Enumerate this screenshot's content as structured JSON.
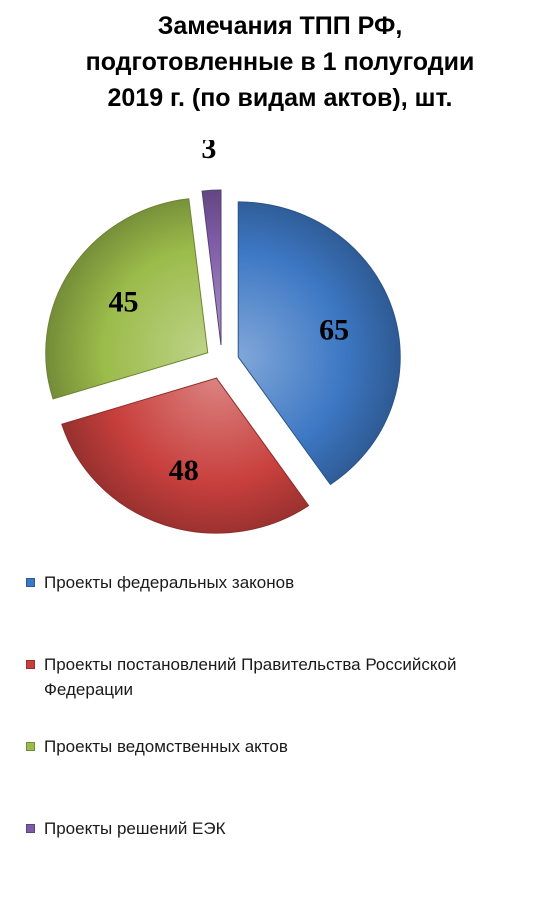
{
  "chart_data": {
    "type": "pie",
    "title": [
      "Замечания ТПП РФ,",
      "подготовленные в 1 полугодии",
      "2019 г. (по видам актов), шт."
    ],
    "series": [
      {
        "name": "Проекты федеральных законов",
        "value": 65,
        "color": "#3d78c4"
      },
      {
        "name": "Проекты постановлений Правительства Российской Федерации",
        "value": 48,
        "color": "#c8403d"
      },
      {
        "name": "Проекты ведомственных актов",
        "value": 45,
        "color": "#9bbb4a"
      },
      {
        "name": "Проекты решений ЕЭК",
        "value": 3,
        "color": "#7e5ba6"
      }
    ],
    "style": "3d-exploded-pie",
    "legend_position": "bottom"
  }
}
